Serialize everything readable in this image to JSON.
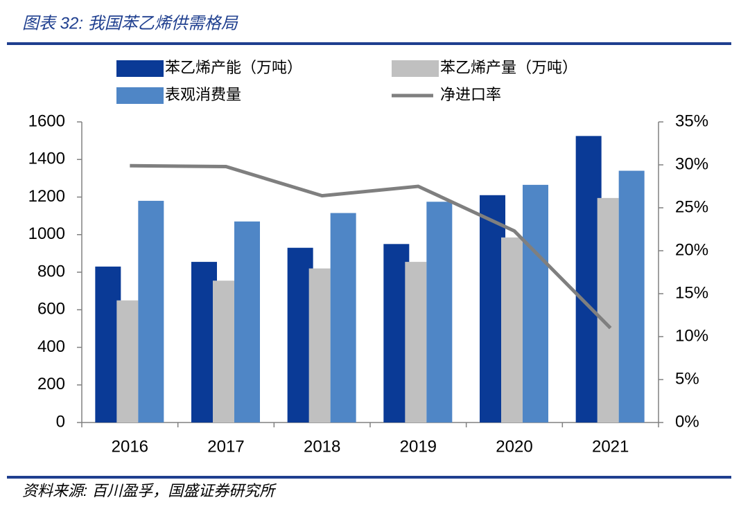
{
  "chart_data": {
    "type": "bar",
    "title": "图表 32:  我国苯乙烯供需格局",
    "source": "资料来源:  百川盈孚，国盛证券研究所",
    "categories": [
      "2016",
      "2017",
      "2018",
      "2019",
      "2020",
      "2021"
    ],
    "series": [
      {
        "name": "苯乙烯产能（万吨）",
        "color": "#0a3a96",
        "values": [
          830,
          855,
          930,
          950,
          1210,
          1525
        ]
      },
      {
        "name": "苯乙烯产量（万吨）",
        "color": "#c0c0c0",
        "values": [
          650,
          755,
          820,
          855,
          985,
          1195
        ]
      },
      {
        "name": "表观消费量",
        "color": "#4f86c6",
        "values": [
          1180,
          1070,
          1115,
          1175,
          1265,
          1340
        ]
      },
      {
        "name": "净进口率",
        "color": "#7f7f7f",
        "type": "line",
        "axis": "y2",
        "values": [
          29.9,
          29.8,
          26.4,
          27.5,
          22.3,
          11.0
        ]
      }
    ],
    "ylim": [
      0,
      1600
    ],
    "yticks": [
      0,
      200,
      400,
      600,
      800,
      1000,
      1200,
      1400,
      1600
    ],
    "y2lim": [
      0,
      35
    ],
    "y2ticks": [
      {
        "value": 0,
        "label": "0%"
      },
      {
        "value": 5,
        "label": "5%"
      },
      {
        "value": 10,
        "label": "10%"
      },
      {
        "value": 15,
        "label": "15%"
      },
      {
        "value": 20,
        "label": "20%"
      },
      {
        "value": 25,
        "label": "25%"
      },
      {
        "value": 30,
        "label": "30%"
      },
      {
        "value": 35,
        "label": "35%"
      }
    ],
    "grid": false,
    "legend": "top"
  }
}
